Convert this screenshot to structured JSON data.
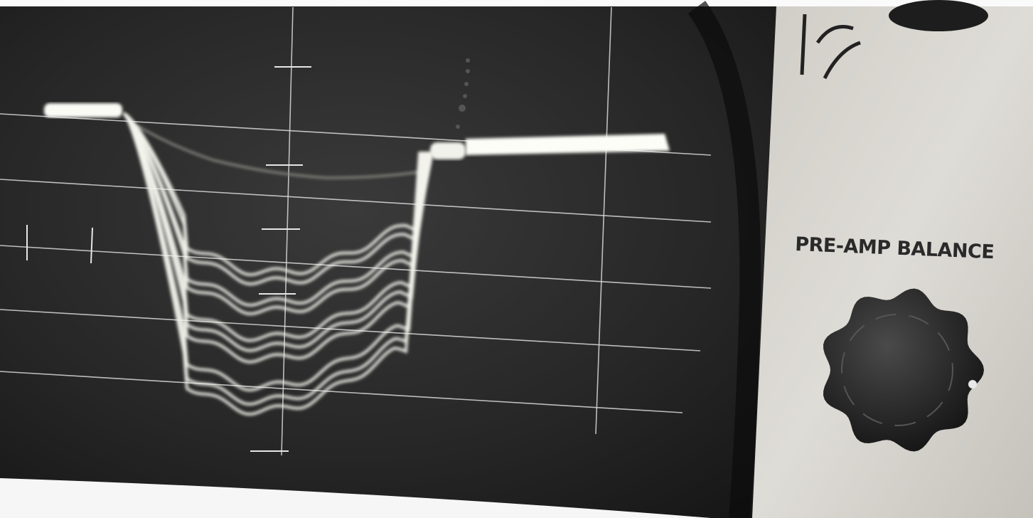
{
  "panel": {
    "label": "PRE-AMP BALANCE"
  }
}
